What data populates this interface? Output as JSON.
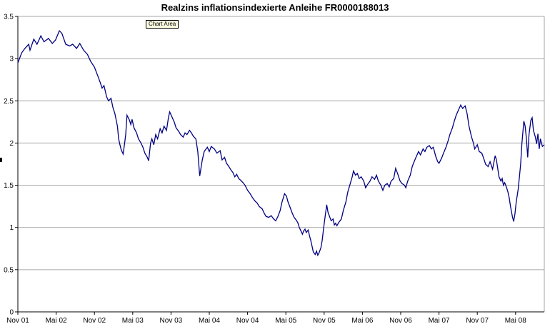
{
  "title": "Realzins inflationsindexierte Anleihe FR0000188013",
  "tooltip": {
    "label": "Chart Area"
  },
  "colors": {
    "line": "#000082",
    "gridline": "#a6a6a6",
    "axis": "#000000",
    "plot_border": "#a6a6a6",
    "tooltip_bg": "#ffffe1",
    "background": "#ffffff"
  },
  "chart_data": {
    "type": "line",
    "title": "Realzins inflationsindexierte Anleihe FR0000188013",
    "xlabel": "",
    "ylabel": "",
    "grid": true,
    "legend": "none",
    "y_axis": {
      "min": 0,
      "max": 3.5,
      "step": 0.5,
      "tick_labels": [
        "0",
        "0.5",
        "1",
        "1.5",
        "2",
        "2.5",
        "3",
        "3.5"
      ]
    },
    "x_axis": {
      "unit": "months since Nov 2001",
      "range_months": 82.5,
      "ticks": [
        {
          "label": "Nov 01",
          "m": 0
        },
        {
          "label": "Mai 02",
          "m": 6
        },
        {
          "label": "Nov 02",
          "m": 12
        },
        {
          "label": "Mai 03",
          "m": 18
        },
        {
          "label": "Nov 03",
          "m": 24
        },
        {
          "label": "Mai 04",
          "m": 30
        },
        {
          "label": "Nov 04",
          "m": 36
        },
        {
          "label": "Mai 05",
          "m": 42
        },
        {
          "label": "Nov 05",
          "m": 48
        },
        {
          "label": "Mai 06",
          "m": 54
        },
        {
          "label": "Nov 06",
          "m": 60
        },
        {
          "label": "Mai 07",
          "m": 66
        },
        {
          "label": "Nov 07",
          "m": 72
        },
        {
          "label": "Mai 08",
          "m": 78
        }
      ]
    },
    "series": [
      {
        "name": "Realzins",
        "points": [
          [
            0,
            2.95
          ],
          [
            0.6,
            3.07
          ],
          [
            1.1,
            3.12
          ],
          [
            1.7,
            3.17
          ],
          [
            1.9,
            3.1
          ],
          [
            2.5,
            3.23
          ],
          [
            3.0,
            3.17
          ],
          [
            3.6,
            3.27
          ],
          [
            4.1,
            3.2
          ],
          [
            4.8,
            3.24
          ],
          [
            5.4,
            3.18
          ],
          [
            5.9,
            3.22
          ],
          [
            6.5,
            3.33
          ],
          [
            6.9,
            3.3
          ],
          [
            7.5,
            3.17
          ],
          [
            8.1,
            3.15
          ],
          [
            8.6,
            3.17
          ],
          [
            9.2,
            3.12
          ],
          [
            9.7,
            3.18
          ],
          [
            10.3,
            3.1
          ],
          [
            10.9,
            3.05
          ],
          [
            11.4,
            2.97
          ],
          [
            12.0,
            2.9
          ],
          [
            12.5,
            2.8
          ],
          [
            12.9,
            2.72
          ],
          [
            13.2,
            2.65
          ],
          [
            13.5,
            2.68
          ],
          [
            13.9,
            2.55
          ],
          [
            14.2,
            2.5
          ],
          [
            14.6,
            2.53
          ],
          [
            14.9,
            2.42
          ],
          [
            15.2,
            2.35
          ],
          [
            15.6,
            2.2
          ],
          [
            15.8,
            2.05
          ],
          [
            16.0,
            1.98
          ],
          [
            16.2,
            1.92
          ],
          [
            16.5,
            1.87
          ],
          [
            16.7,
            1.98
          ],
          [
            16.9,
            2.1
          ],
          [
            17.1,
            2.33
          ],
          [
            17.5,
            2.27
          ],
          [
            17.7,
            2.22
          ],
          [
            17.9,
            2.28
          ],
          [
            18.2,
            2.18
          ],
          [
            18.6,
            2.12
          ],
          [
            18.9,
            2.05
          ],
          [
            19.3,
            2.0
          ],
          [
            19.6,
            1.95
          ],
          [
            19.9,
            1.88
          ],
          [
            20.3,
            1.83
          ],
          [
            20.5,
            1.79
          ],
          [
            20.8,
            2.0
          ],
          [
            21.0,
            2.05
          ],
          [
            21.3,
            1.98
          ],
          [
            21.6,
            2.1
          ],
          [
            21.9,
            2.05
          ],
          [
            22.3,
            2.17
          ],
          [
            22.6,
            2.12
          ],
          [
            22.9,
            2.2
          ],
          [
            23.3,
            2.15
          ],
          [
            23.6,
            2.3
          ],
          [
            23.8,
            2.37
          ],
          [
            24.2,
            2.3
          ],
          [
            24.5,
            2.25
          ],
          [
            24.8,
            2.18
          ],
          [
            25.2,
            2.14
          ],
          [
            25.5,
            2.1
          ],
          [
            25.9,
            2.07
          ],
          [
            26.2,
            2.12
          ],
          [
            26.5,
            2.1
          ],
          [
            26.9,
            2.15
          ],
          [
            27.2,
            2.12
          ],
          [
            27.5,
            2.08
          ],
          [
            27.9,
            2.05
          ],
          [
            28.2,
            1.9
          ],
          [
            28.5,
            1.61
          ],
          [
            28.9,
            1.8
          ],
          [
            29.2,
            1.9
          ],
          [
            29.7,
            1.95
          ],
          [
            30.0,
            1.9
          ],
          [
            30.3,
            1.96
          ],
          [
            30.8,
            1.93
          ],
          [
            31.2,
            1.88
          ],
          [
            31.7,
            1.91
          ],
          [
            32.0,
            1.8
          ],
          [
            32.4,
            1.83
          ],
          [
            32.7,
            1.76
          ],
          [
            33.0,
            1.73
          ],
          [
            33.4,
            1.68
          ],
          [
            33.7,
            1.65
          ],
          [
            34.0,
            1.6
          ],
          [
            34.3,
            1.63
          ],
          [
            34.6,
            1.58
          ],
          [
            34.9,
            1.56
          ],
          [
            35.3,
            1.53
          ],
          [
            35.6,
            1.5
          ],
          [
            36.0,
            1.44
          ],
          [
            36.4,
            1.4
          ],
          [
            36.8,
            1.35
          ],
          [
            37.2,
            1.31
          ],
          [
            37.5,
            1.29
          ],
          [
            37.8,
            1.25
          ],
          [
            38.3,
            1.22
          ],
          [
            38.6,
            1.17
          ],
          [
            38.9,
            1.13
          ],
          [
            39.3,
            1.12
          ],
          [
            39.7,
            1.14
          ],
          [
            40.1,
            1.1
          ],
          [
            40.4,
            1.08
          ],
          [
            40.7,
            1.12
          ],
          [
            41.1,
            1.2
          ],
          [
            41.4,
            1.3
          ],
          [
            41.8,
            1.4
          ],
          [
            42.1,
            1.37
          ],
          [
            42.3,
            1.31
          ],
          [
            42.7,
            1.23
          ],
          [
            43.0,
            1.17
          ],
          [
            43.3,
            1.12
          ],
          [
            43.7,
            1.08
          ],
          [
            43.9,
            1.05
          ],
          [
            44.1,
            1.0
          ],
          [
            44.3,
            0.97
          ],
          [
            44.6,
            0.92
          ],
          [
            44.8,
            0.96
          ],
          [
            45.0,
            0.98
          ],
          [
            45.2,
            0.94
          ],
          [
            45.5,
            0.97
          ],
          [
            45.7,
            0.9
          ],
          [
            45.9,
            0.85
          ],
          [
            46.1,
            0.78
          ],
          [
            46.3,
            0.71
          ],
          [
            46.6,
            0.68
          ],
          [
            46.8,
            0.72
          ],
          [
            47.0,
            0.67
          ],
          [
            47.2,
            0.7
          ],
          [
            47.5,
            0.76
          ],
          [
            47.7,
            0.85
          ],
          [
            47.9,
            0.98
          ],
          [
            48.1,
            1.1
          ],
          [
            48.4,
            1.27
          ],
          [
            48.6,
            1.18
          ],
          [
            48.9,
            1.12
          ],
          [
            49.1,
            1.08
          ],
          [
            49.4,
            1.1
          ],
          [
            49.6,
            1.03
          ],
          [
            49.8,
            1.05
          ],
          [
            50.0,
            1.02
          ],
          [
            50.3,
            1.06
          ],
          [
            50.5,
            1.08
          ],
          [
            50.7,
            1.1
          ],
          [
            51.0,
            1.2
          ],
          [
            51.4,
            1.3
          ],
          [
            51.7,
            1.42
          ],
          [
            52.1,
            1.52
          ],
          [
            52.4,
            1.6
          ],
          [
            52.6,
            1.67
          ],
          [
            52.9,
            1.62
          ],
          [
            53.2,
            1.64
          ],
          [
            53.5,
            1.58
          ],
          [
            53.8,
            1.6
          ],
          [
            54.2,
            1.55
          ],
          [
            54.5,
            1.47
          ],
          [
            54.9,
            1.52
          ],
          [
            55.2,
            1.55
          ],
          [
            55.5,
            1.6
          ],
          [
            55.9,
            1.57
          ],
          [
            56.2,
            1.62
          ],
          [
            56.5,
            1.55
          ],
          [
            56.9,
            1.5
          ],
          [
            57.2,
            1.44
          ],
          [
            57.5,
            1.5
          ],
          [
            57.9,
            1.52
          ],
          [
            58.2,
            1.48
          ],
          [
            58.5,
            1.55
          ],
          [
            58.9,
            1.58
          ],
          [
            59.2,
            1.7
          ],
          [
            59.6,
            1.62
          ],
          [
            59.9,
            1.55
          ],
          [
            60.2,
            1.52
          ],
          [
            60.6,
            1.5
          ],
          [
            60.8,
            1.47
          ],
          [
            61.1,
            1.55
          ],
          [
            61.5,
            1.62
          ],
          [
            61.8,
            1.72
          ],
          [
            62.1,
            1.78
          ],
          [
            62.5,
            1.85
          ],
          [
            62.8,
            1.9
          ],
          [
            63.1,
            1.86
          ],
          [
            63.5,
            1.93
          ],
          [
            63.8,
            1.9
          ],
          [
            64.1,
            1.95
          ],
          [
            64.5,
            1.97
          ],
          [
            64.8,
            1.93
          ],
          [
            65.1,
            1.95
          ],
          [
            65.5,
            1.84
          ],
          [
            65.8,
            1.78
          ],
          [
            66.0,
            1.76
          ],
          [
            66.4,
            1.82
          ],
          [
            66.7,
            1.88
          ],
          [
            67.1,
            1.95
          ],
          [
            67.4,
            2.02
          ],
          [
            67.7,
            2.1
          ],
          [
            68.1,
            2.18
          ],
          [
            68.4,
            2.26
          ],
          [
            68.7,
            2.33
          ],
          [
            69.1,
            2.4
          ],
          [
            69.4,
            2.45
          ],
          [
            69.7,
            2.41
          ],
          [
            70.1,
            2.44
          ],
          [
            70.4,
            2.35
          ],
          [
            70.7,
            2.2
          ],
          [
            71.1,
            2.07
          ],
          [
            71.4,
            2.0
          ],
          [
            71.6,
            1.93
          ],
          [
            72.0,
            1.98
          ],
          [
            72.3,
            1.9
          ],
          [
            72.7,
            1.88
          ],
          [
            73.0,
            1.82
          ],
          [
            73.3,
            1.75
          ],
          [
            73.7,
            1.72
          ],
          [
            74.0,
            1.78
          ],
          [
            74.4,
            1.69
          ],
          [
            74.8,
            1.85
          ],
          [
            75.0,
            1.8
          ],
          [
            75.2,
            1.7
          ],
          [
            75.4,
            1.6
          ],
          [
            75.7,
            1.55
          ],
          [
            75.9,
            1.58
          ],
          [
            76.1,
            1.5
          ],
          [
            76.3,
            1.53
          ],
          [
            76.6,
            1.47
          ],
          [
            76.8,
            1.42
          ],
          [
            77.0,
            1.35
          ],
          [
            77.2,
            1.25
          ],
          [
            77.5,
            1.13
          ],
          [
            77.7,
            1.07
          ],
          [
            77.9,
            1.16
          ],
          [
            78.1,
            1.3
          ],
          [
            78.4,
            1.45
          ],
          [
            78.6,
            1.6
          ],
          [
            78.8,
            1.75
          ],
          [
            79.0,
            2.0
          ],
          [
            79.3,
            2.26
          ],
          [
            79.5,
            2.2
          ],
          [
            79.7,
            2.05
          ],
          [
            79.9,
            1.83
          ],
          [
            80.1,
            2.1
          ],
          [
            80.4,
            2.27
          ],
          [
            80.6,
            2.3
          ],
          [
            80.8,
            2.15
          ],
          [
            81.1,
            2.07
          ],
          [
            81.3,
            1.99
          ],
          [
            81.5,
            2.11
          ],
          [
            81.7,
            1.93
          ],
          [
            81.9,
            2.05
          ],
          [
            82.2,
            1.96
          ],
          [
            82.5,
            1.98
          ]
        ]
      }
    ]
  }
}
